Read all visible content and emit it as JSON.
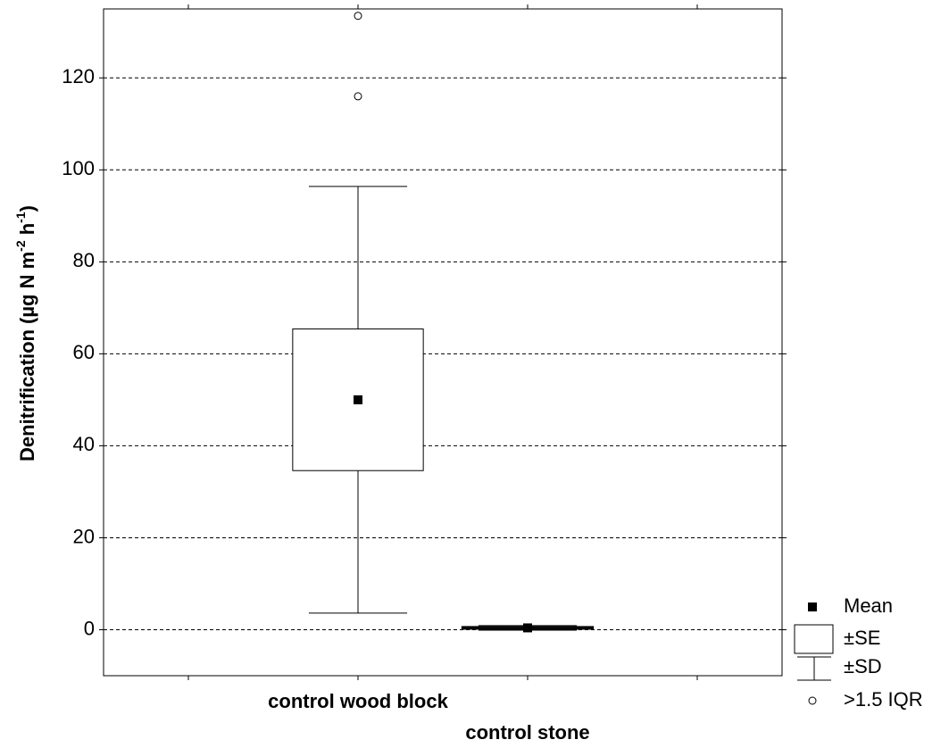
{
  "chart_data": {
    "type": "box",
    "ylabel": [
      "Denitrification (µg N m",
      "-2",
      " h",
      "-1",
      ")"
    ],
    "categories": [
      "control wood block",
      "control stone"
    ],
    "series": [
      {
        "mean": 50,
        "se": 15.4,
        "sd": 46.4,
        "outliers": [
          116,
          133.5
        ]
      },
      {
        "mean": 0.4,
        "se": 0.2,
        "sd": 0.5,
        "outliers": []
      }
    ],
    "ylim": [
      -10,
      135
    ],
    "yticks": [
      0,
      20,
      40,
      60,
      80,
      100,
      120
    ],
    "grid": true,
    "legend": [
      "Mean",
      "±SE",
      "±SD",
      ">1.5 IQR"
    ],
    "color": "#000000"
  }
}
